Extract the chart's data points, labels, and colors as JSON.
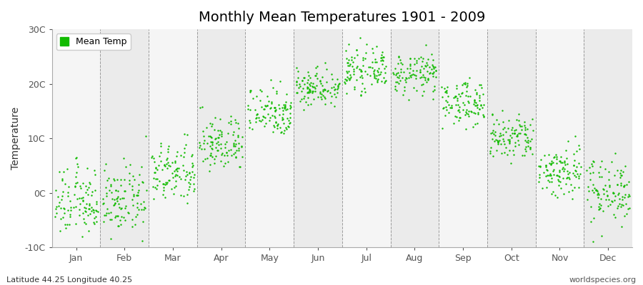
{
  "title": "Monthly Mean Temperatures 1901 - 2009",
  "ylabel": "Temperature",
  "footer_left": "Latitude 44.25 Longitude 40.25",
  "footer_right": "worldspecies.org",
  "legend_label": "Mean Temp",
  "dot_color": "#11bb00",
  "dot_size": 3,
  "ylim": [
    -10,
    30
  ],
  "yticks": [
    -10,
    0,
    10,
    20,
    30
  ],
  "ytick_labels": [
    "-10C",
    "0C",
    "10C",
    "20C",
    "30C"
  ],
  "months": [
    "Jan",
    "Feb",
    "Mar",
    "Apr",
    "May",
    "Jun",
    "Jul",
    "Aug",
    "Sep",
    "Oct",
    "Nov",
    "Dec"
  ],
  "monthly_means": [
    -1.8,
    -1.5,
    3.5,
    9.0,
    15.0,
    19.5,
    22.5,
    21.8,
    16.5,
    10.0,
    4.0,
    0.5
  ],
  "monthly_stds": [
    3.2,
    3.0,
    2.8,
    2.5,
    2.3,
    1.8,
    1.8,
    1.8,
    2.0,
    2.2,
    2.5,
    3.0
  ],
  "n_years": 109,
  "bg_colors": [
    "#f5f5f5",
    "#ebebeb"
  ],
  "grid_color": "#777777",
  "title_fontsize": 14,
  "axis_label_fontsize": 10,
  "tick_label_fontsize": 9,
  "footer_fontsize": 8,
  "legend_marker_size": 6
}
